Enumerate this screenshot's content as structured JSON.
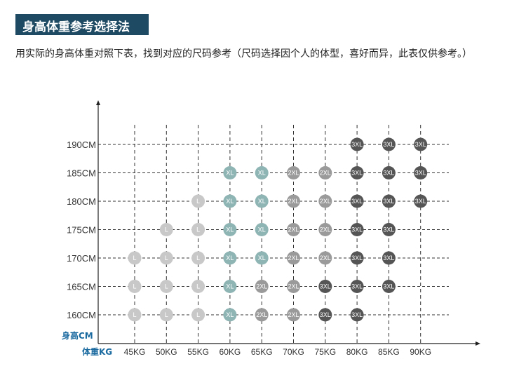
{
  "header": {
    "title": "身高体重参考选择法",
    "description": "用实际的身高体重对照下表，找到对应的尺码参考（尺码选择因个人的体型，喜好而异，此表仅供参考。）"
  },
  "colors": {
    "L": "#c8c8c8",
    "XL": "#8fb4b4",
    "2XL": "#9a9a9a",
    "3XL": "#555555",
    "title_bg": "#1e4a63",
    "axis_title": "#1a6aa0"
  },
  "chart_data": {
    "type": "scatter",
    "title": "",
    "xlabel": "体重KG",
    "ylabel": "身高CM",
    "x_categories": [
      "45KG",
      "50KG",
      "55KG",
      "60KG",
      "65KG",
      "70KG",
      "75KG",
      "80KG",
      "85KG",
      "90KG"
    ],
    "y_categories": [
      "160CM",
      "165CM",
      "170CM",
      "175CM",
      "180CM",
      "185CM",
      "190CM"
    ],
    "grid": true,
    "points": [
      {
        "x": "45KG",
        "y": "160CM",
        "size": "L"
      },
      {
        "x": "50KG",
        "y": "160CM",
        "size": "L"
      },
      {
        "x": "55KG",
        "y": "160CM",
        "size": "L"
      },
      {
        "x": "60KG",
        "y": "160CM",
        "size": "XL"
      },
      {
        "x": "65KG",
        "y": "160CM",
        "size": "2XL"
      },
      {
        "x": "70KG",
        "y": "160CM",
        "size": "2XL"
      },
      {
        "x": "75KG",
        "y": "160CM",
        "size": "3XL"
      },
      {
        "x": "80KG",
        "y": "160CM",
        "size": "3XL"
      },
      {
        "x": "45KG",
        "y": "165CM",
        "size": "L"
      },
      {
        "x": "50KG",
        "y": "165CM",
        "size": "L"
      },
      {
        "x": "55KG",
        "y": "165CM",
        "size": "L"
      },
      {
        "x": "60KG",
        "y": "165CM",
        "size": "XL"
      },
      {
        "x": "65KG",
        "y": "165CM",
        "size": "2XL"
      },
      {
        "x": "70KG",
        "y": "165CM",
        "size": "2XL"
      },
      {
        "x": "75KG",
        "y": "165CM",
        "size": "3XL"
      },
      {
        "x": "80KG",
        "y": "165CM",
        "size": "3XL"
      },
      {
        "x": "85KG",
        "y": "165CM",
        "size": "3XL"
      },
      {
        "x": "45KG",
        "y": "170CM",
        "size": "L"
      },
      {
        "x": "50KG",
        "y": "170CM",
        "size": "L"
      },
      {
        "x": "55KG",
        "y": "170CM",
        "size": "L"
      },
      {
        "x": "60KG",
        "y": "170CM",
        "size": "XL"
      },
      {
        "x": "65KG",
        "y": "170CM",
        "size": "XL"
      },
      {
        "x": "70KG",
        "y": "170CM",
        "size": "2XL"
      },
      {
        "x": "75KG",
        "y": "170CM",
        "size": "2XL"
      },
      {
        "x": "80KG",
        "y": "170CM",
        "size": "3XL"
      },
      {
        "x": "85KG",
        "y": "170CM",
        "size": "3XL"
      },
      {
        "x": "50KG",
        "y": "175CM",
        "size": "L"
      },
      {
        "x": "55KG",
        "y": "175CM",
        "size": "L"
      },
      {
        "x": "60KG",
        "y": "175CM",
        "size": "XL"
      },
      {
        "x": "65KG",
        "y": "175CM",
        "size": "XL"
      },
      {
        "x": "70KG",
        "y": "175CM",
        "size": "2XL"
      },
      {
        "x": "75KG",
        "y": "175CM",
        "size": "2XL"
      },
      {
        "x": "80KG",
        "y": "175CM",
        "size": "3XL"
      },
      {
        "x": "85KG",
        "y": "175CM",
        "size": "3XL"
      },
      {
        "x": "55KG",
        "y": "180CM",
        "size": "L"
      },
      {
        "x": "60KG",
        "y": "180CM",
        "size": "XL"
      },
      {
        "x": "65KG",
        "y": "180CM",
        "size": "XL"
      },
      {
        "x": "70KG",
        "y": "180CM",
        "size": "2XL"
      },
      {
        "x": "75KG",
        "y": "180CM",
        "size": "2XL"
      },
      {
        "x": "80KG",
        "y": "180CM",
        "size": "3XL"
      },
      {
        "x": "85KG",
        "y": "180CM",
        "size": "3XL"
      },
      {
        "x": "90KG",
        "y": "180CM",
        "size": "3XL"
      },
      {
        "x": "60KG",
        "y": "185CM",
        "size": "XL"
      },
      {
        "x": "65KG",
        "y": "185CM",
        "size": "XL"
      },
      {
        "x": "70KG",
        "y": "185CM",
        "size": "2XL"
      },
      {
        "x": "75KG",
        "y": "185CM",
        "size": "2XL"
      },
      {
        "x": "80KG",
        "y": "185CM",
        "size": "3XL"
      },
      {
        "x": "85KG",
        "y": "185CM",
        "size": "3XL"
      },
      {
        "x": "90KG",
        "y": "185CM",
        "size": "3XL"
      },
      {
        "x": "80KG",
        "y": "190CM",
        "size": "3XL"
      },
      {
        "x": "85KG",
        "y": "190CM",
        "size": "3XL"
      },
      {
        "x": "90KG",
        "y": "190CM",
        "size": "3XL"
      }
    ]
  }
}
